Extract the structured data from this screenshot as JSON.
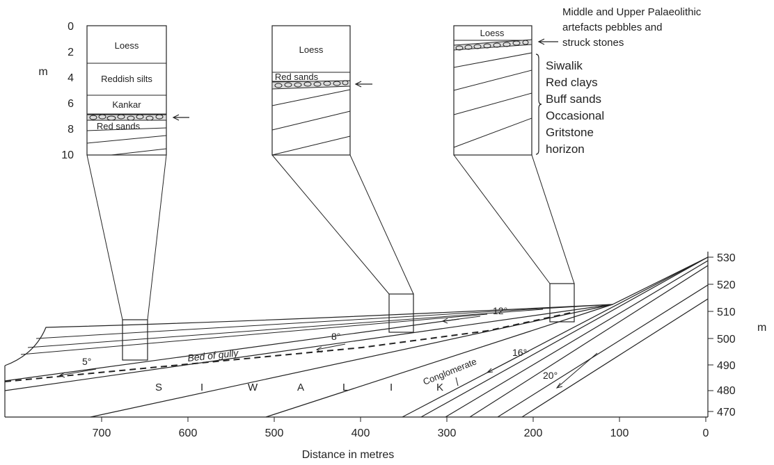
{
  "depth_axis": {
    "unit": "m",
    "ticks": [
      "0",
      "2",
      "4",
      "6",
      "8",
      "10"
    ]
  },
  "columns": [
    {
      "id": "col1",
      "layers": [
        {
          "label": "Loess",
          "from_m": 0,
          "to_m": 3.0
        },
        {
          "label": "Reddish silts",
          "from_m": 3.0,
          "to_m": 5.5
        },
        {
          "label": "Kankar",
          "from_m": 5.5,
          "to_m": 7.0
        },
        {
          "label": "",
          "from_m": 7.0,
          "to_m": 7.5,
          "pebbles": true
        },
        {
          "label": "Red sands",
          "from_m": 7.5,
          "to_m": 8.3
        },
        {
          "label": "",
          "from_m": 8.3,
          "to_m": 10.0,
          "dipping_beds": true
        }
      ],
      "artefact_arrow": true
    },
    {
      "id": "col2",
      "layers": [
        {
          "label": "Loess",
          "from_m": 0,
          "to_m": 3.7
        },
        {
          "label": "Red sands",
          "from_m": 3.7,
          "to_m": 4.5
        },
        {
          "label": "",
          "from_m": 4.5,
          "to_m": 5.0,
          "pebbles": true
        },
        {
          "label": "",
          "from_m": 5.0,
          "to_m": 10.0,
          "dipping_beds": true
        }
      ],
      "artefact_arrow": true
    },
    {
      "id": "col3",
      "layers": [
        {
          "label": "Loess",
          "from_m": 0,
          "to_m": 1.2
        },
        {
          "label": "",
          "from_m": 1.2,
          "to_m": 1.9,
          "pebbles": true
        },
        {
          "label": "",
          "from_m": 1.9,
          "to_m": 10.0,
          "dipping_beds": true
        }
      ],
      "artefact_arrow": true
    }
  ],
  "artefact_note": [
    "Middle and Upper Palaeolithic",
    "artefacts pebbles and",
    "struck stones"
  ],
  "siwalik_note": [
    "Siwalik",
    "Red clays",
    "Buff sands",
    "Occasional",
    "Gritstone",
    "horizon"
  ],
  "section": {
    "x_axis": {
      "title": "Distance in metres",
      "ticks": [
        "700",
        "600",
        "500",
        "400",
        "300",
        "200",
        "100",
        "0"
      ]
    },
    "elevation_axis": {
      "unit": "m",
      "ticks": [
        "530",
        "520",
        "510",
        "500",
        "490",
        "480",
        "470"
      ]
    },
    "dip_labels": [
      "5°",
      "8°",
      "12°",
      "16°",
      "20°"
    ],
    "bed_of_gully_label": "Bed of gully",
    "conglomerate_label": "Conglomerate",
    "siwalik_letters": [
      "S",
      "I",
      "W",
      "A",
      "L",
      "I",
      "K"
    ]
  }
}
